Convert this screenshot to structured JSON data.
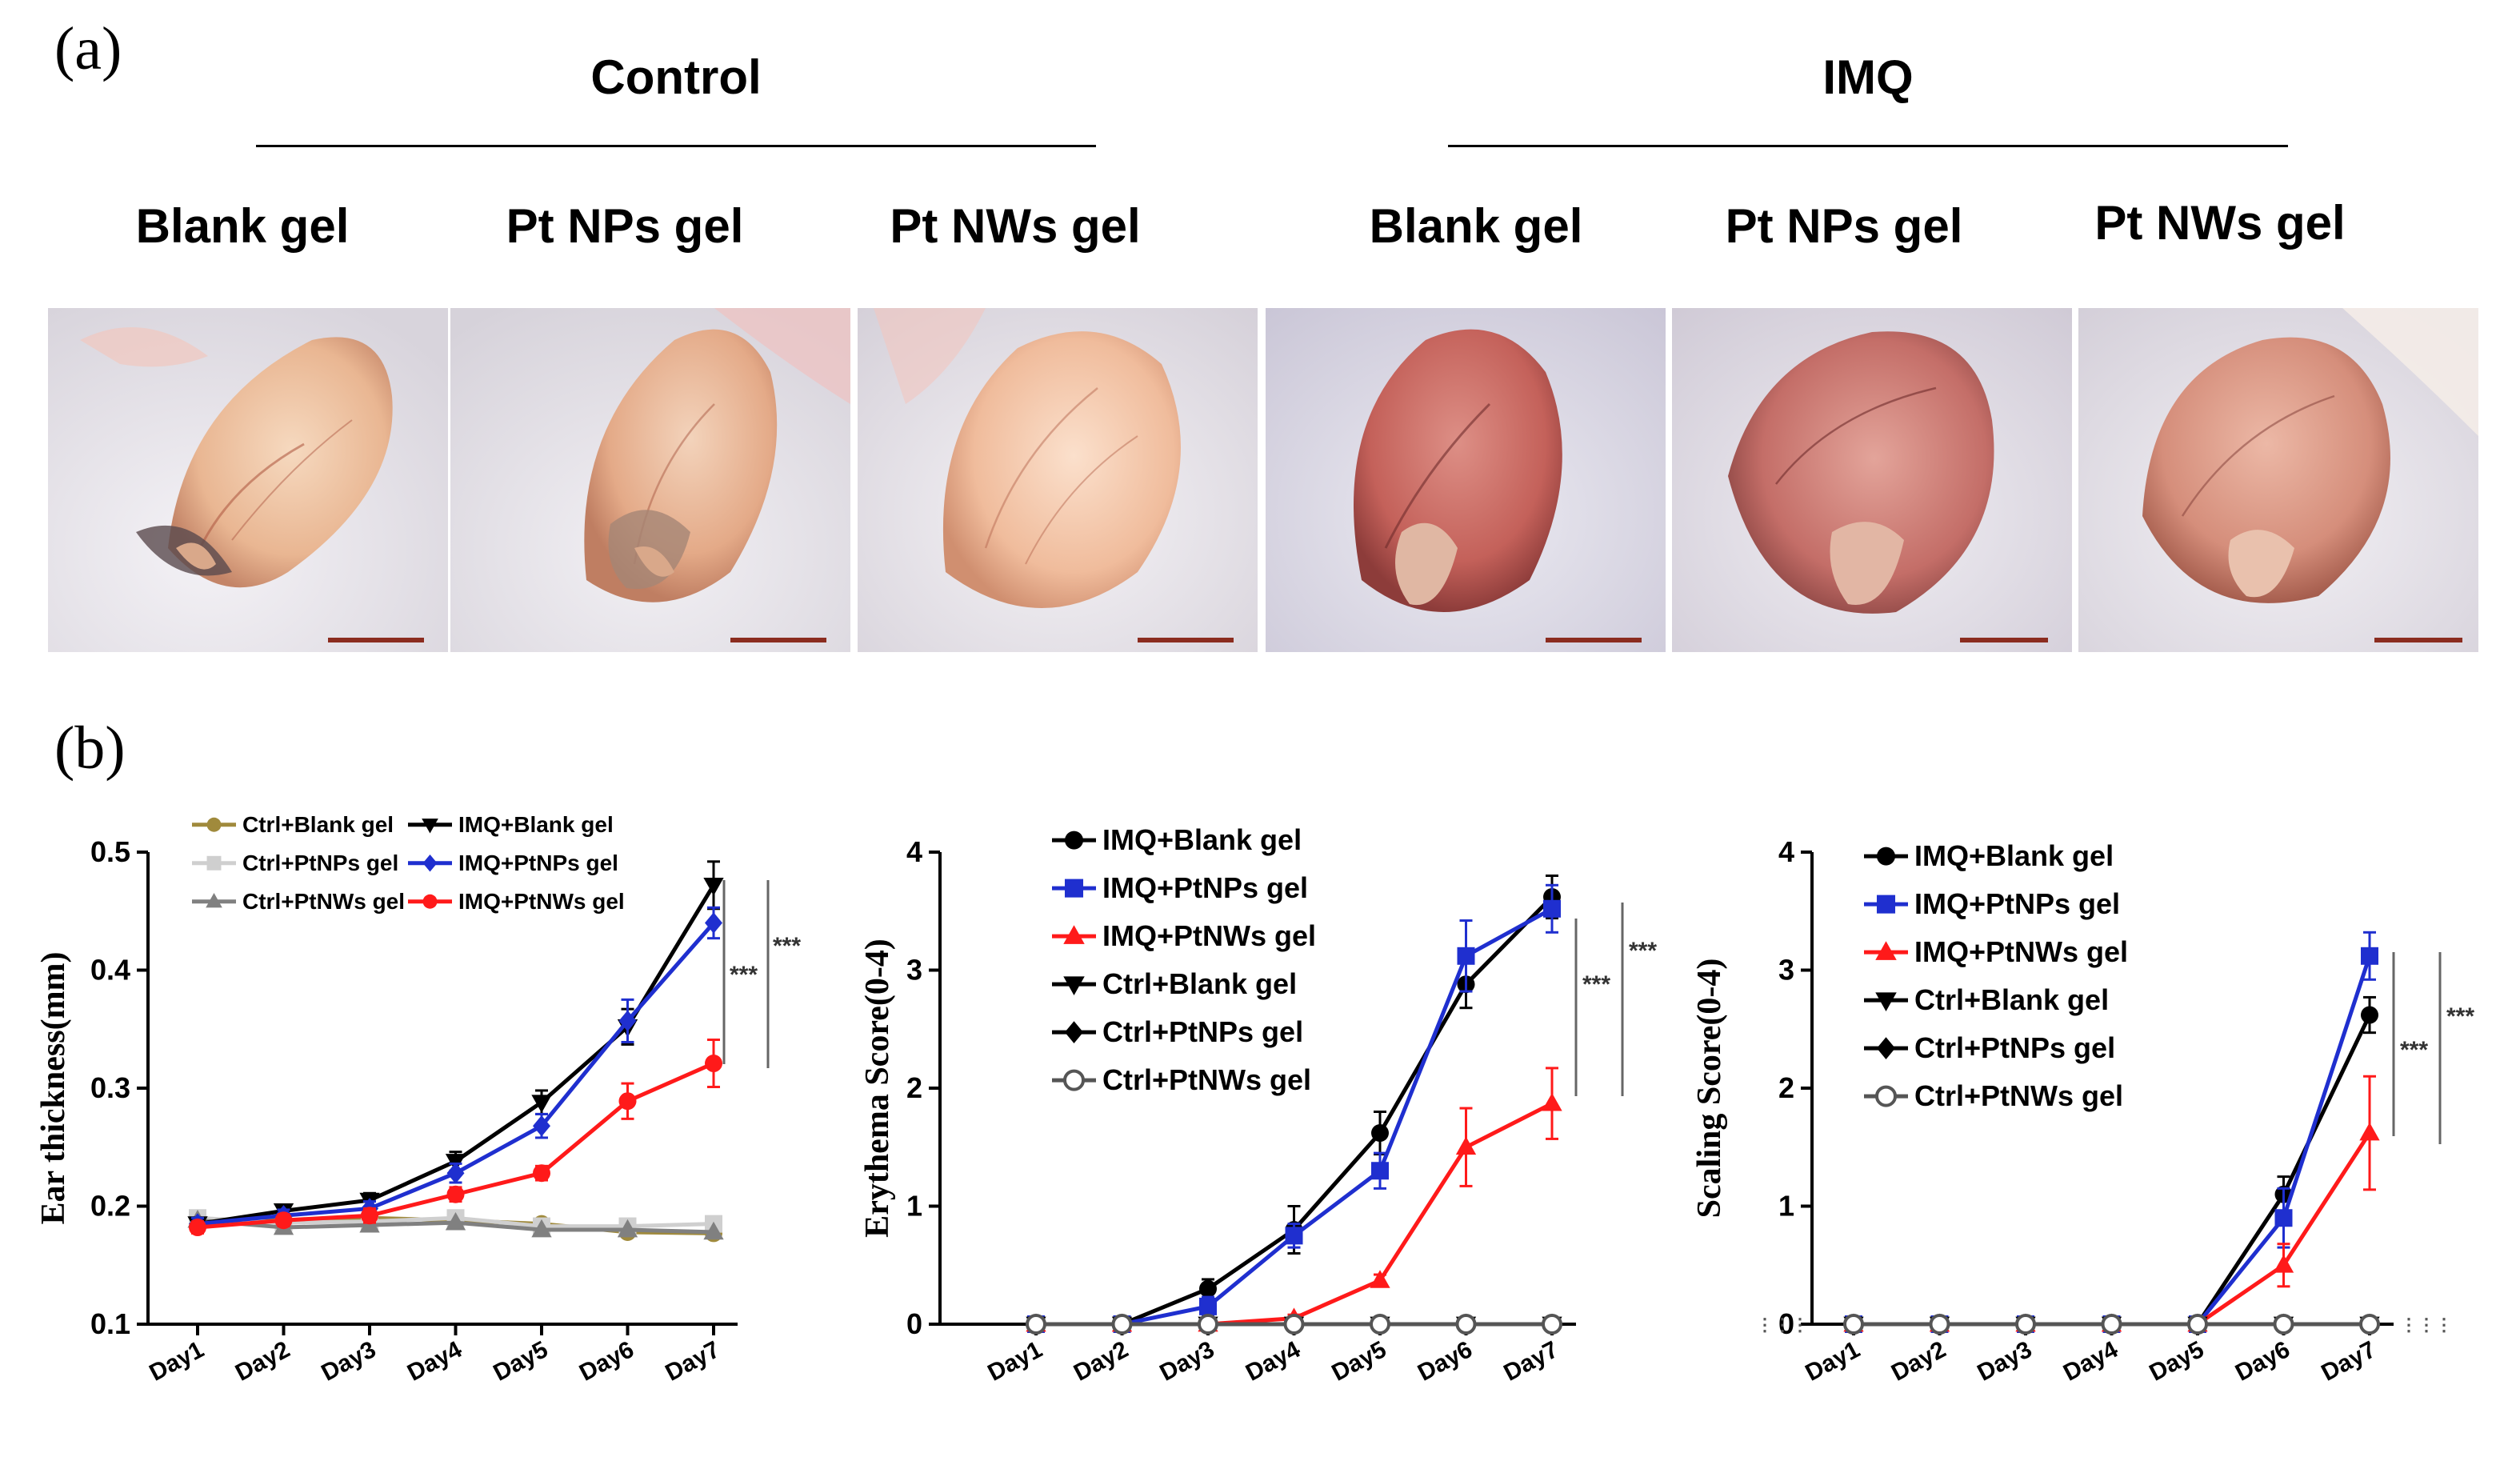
{
  "panel_a": {
    "label": "(a)",
    "groups": [
      {
        "title": "Control",
        "columns": [
          "Blank gel",
          "Pt NPs gel",
          "Pt NWs gel"
        ]
      },
      {
        "title": "IMQ",
        "columns": [
          "Blank gel",
          "Pt NPs gel",
          "Pt NWs gel"
        ]
      }
    ]
  },
  "panel_b": {
    "label": "(b)"
  },
  "chart_data": [
    {
      "type": "line",
      "ylabel": "Ear thickness(mm)",
      "ylim": [
        0.1,
        0.5
      ],
      "yticks": [
        "0.1",
        "0.2",
        "0.3",
        "0.4",
        "0.5"
      ],
      "categories": [
        "Day1",
        "Day2",
        "Day3",
        "Day4",
        "Day5",
        "Day6",
        "Day7"
      ],
      "significance": [
        "***",
        "***"
      ],
      "series": [
        {
          "name": "Ctrl+Blank gel",
          "color": "#a08a3c",
          "marker": "circle",
          "values": [
            0.187,
            0.188,
            0.19,
            0.188,
            0.185,
            0.178,
            0.177
          ]
        },
        {
          "name": "Ctrl+PtNPs gel",
          "color": "#cfcfcf",
          "marker": "square",
          "values": [
            0.19,
            0.186,
            0.187,
            0.19,
            0.183,
            0.183,
            0.185
          ]
        },
        {
          "name": "Ctrl+PtNWs gel",
          "color": "#808080",
          "marker": "triangle",
          "values": [
            0.188,
            0.182,
            0.184,
            0.186,
            0.18,
            0.18,
            0.178
          ]
        },
        {
          "name": "IMQ+Blank gel",
          "color": "#000000",
          "marker": "triangle-down",
          "values": [
            0.185,
            0.196,
            0.205,
            0.238,
            0.288,
            0.352,
            0.472
          ],
          "errors": [
            0.005,
            0.005,
            0.006,
            0.008,
            0.01,
            0.015,
            0.02
          ]
        },
        {
          "name": "IMQ+PtNPs gel",
          "color": "#1f2fcf",
          "marker": "diamond",
          "values": [
            0.185,
            0.192,
            0.198,
            0.228,
            0.268,
            0.357,
            0.44
          ],
          "errors": [
            0.005,
            0.005,
            0.006,
            0.008,
            0.01,
            0.018,
            0.013
          ]
        },
        {
          "name": "IMQ+PtNWs gel",
          "color": "#ff1a1a",
          "marker": "circle",
          "values": [
            0.182,
            0.188,
            0.192,
            0.21,
            0.228,
            0.289,
            0.321
          ],
          "errors": [
            0.005,
            0.005,
            0.006,
            0.006,
            0.006,
            0.015,
            0.02
          ]
        }
      ]
    },
    {
      "type": "line",
      "ylabel": "Erythema Score(0-4)",
      "ylim": [
        0,
        4
      ],
      "yticks": [
        "0",
        "1",
        "2",
        "3",
        "4"
      ],
      "categories": [
        "Day1",
        "Day2",
        "Day3",
        "Day4",
        "Day5",
        "Day6",
        "Day7"
      ],
      "significance": [
        "***",
        "***"
      ],
      "series": [
        {
          "name": "IMQ+Blank gel",
          "color": "#000000",
          "marker": "circle",
          "values": [
            0,
            0,
            0.3,
            0.8,
            1.62,
            2.88,
            3.62
          ],
          "errors": [
            0,
            0,
            0.08,
            0.2,
            0.18,
            0.2,
            0.18
          ]
        },
        {
          "name": "IMQ+PtNPs gel",
          "color": "#1f2fcf",
          "marker": "square",
          "values": [
            0,
            0,
            0.15,
            0.75,
            1.3,
            3.12,
            3.52
          ],
          "errors": [
            0,
            0,
            0.08,
            0.1,
            0.15,
            0.3,
            0.2
          ]
        },
        {
          "name": "IMQ+PtNWs gel",
          "color": "#ff1a1a",
          "marker": "triangle",
          "values": [
            0,
            0,
            0,
            0.05,
            0.37,
            1.5,
            1.87
          ],
          "errors": [
            0,
            0,
            0,
            0.03,
            0.05,
            0.33,
            0.3
          ]
        },
        {
          "name": "Ctrl+Blank gel",
          "color": "#000000",
          "marker": "triangle-down",
          "values": [
            0,
            0,
            0,
            0,
            0,
            0,
            0
          ]
        },
        {
          "name": "Ctrl+PtNPs gel",
          "color": "#000000",
          "marker": "diamond",
          "values": [
            0,
            0,
            0,
            0,
            0,
            0,
            0
          ]
        },
        {
          "name": "Ctrl+PtNWs gel",
          "color": "#555555",
          "marker": "circle-open",
          "values": [
            0,
            0,
            0,
            0,
            0,
            0,
            0
          ]
        }
      ]
    },
    {
      "type": "line",
      "ylabel": "Scaling Score(0-4)",
      "ylim": [
        0,
        4
      ],
      "yticks": [
        "0",
        "1",
        "2",
        "3",
        "4"
      ],
      "categories": [
        "Day1",
        "Day2",
        "Day3",
        "Day4",
        "Day5",
        "Day6",
        "Day7"
      ],
      "significance": [
        "***",
        "***"
      ],
      "series": [
        {
          "name": "IMQ+Blank gel",
          "color": "#000000",
          "marker": "circle",
          "values": [
            0,
            0,
            0,
            0,
            0,
            1.1,
            2.62
          ],
          "errors": [
            0,
            0,
            0,
            0,
            0,
            0.15,
            0.15
          ]
        },
        {
          "name": "IMQ+PtNPs gel",
          "color": "#1f2fcf",
          "marker": "square",
          "values": [
            0,
            0,
            0,
            0,
            0,
            0.9,
            3.12
          ],
          "errors": [
            0,
            0,
            0,
            0,
            0,
            0.25,
            0.2
          ]
        },
        {
          "name": "IMQ+PtNWs gel",
          "color": "#ff1a1a",
          "marker": "triangle",
          "values": [
            0,
            0,
            0,
            0,
            0,
            0.5,
            1.62
          ],
          "errors": [
            0,
            0,
            0,
            0,
            0,
            0.18,
            0.48
          ]
        },
        {
          "name": "Ctrl+Blank gel",
          "color": "#000000",
          "marker": "triangle-down",
          "values": [
            0,
            0,
            0,
            0,
            0,
            0,
            0
          ]
        },
        {
          "name": "Ctrl+PtNPs gel",
          "color": "#000000",
          "marker": "diamond",
          "values": [
            0,
            0,
            0,
            0,
            0,
            0,
            0
          ]
        },
        {
          "name": "Ctrl+PtNWs gel",
          "color": "#555555",
          "marker": "circle-open",
          "values": [
            0,
            0,
            0,
            0,
            0,
            0,
            0
          ]
        }
      ]
    }
  ]
}
